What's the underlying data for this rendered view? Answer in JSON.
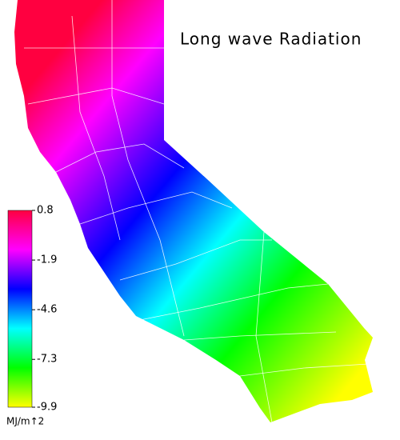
{
  "title": "Long wave Radiation",
  "colorbar": {
    "lim": [
      -9.9,
      0.8
    ],
    "ticks": [
      0.8,
      -1.9,
      -4.6,
      -7.3,
      -9.9
    ],
    "unit": "MJ/m↑2",
    "colors": [
      "#ffff00",
      "#00ff00",
      "#00ffff",
      "#0000ff",
      "#ff00ff",
      "#ff0040"
    ]
  }
}
